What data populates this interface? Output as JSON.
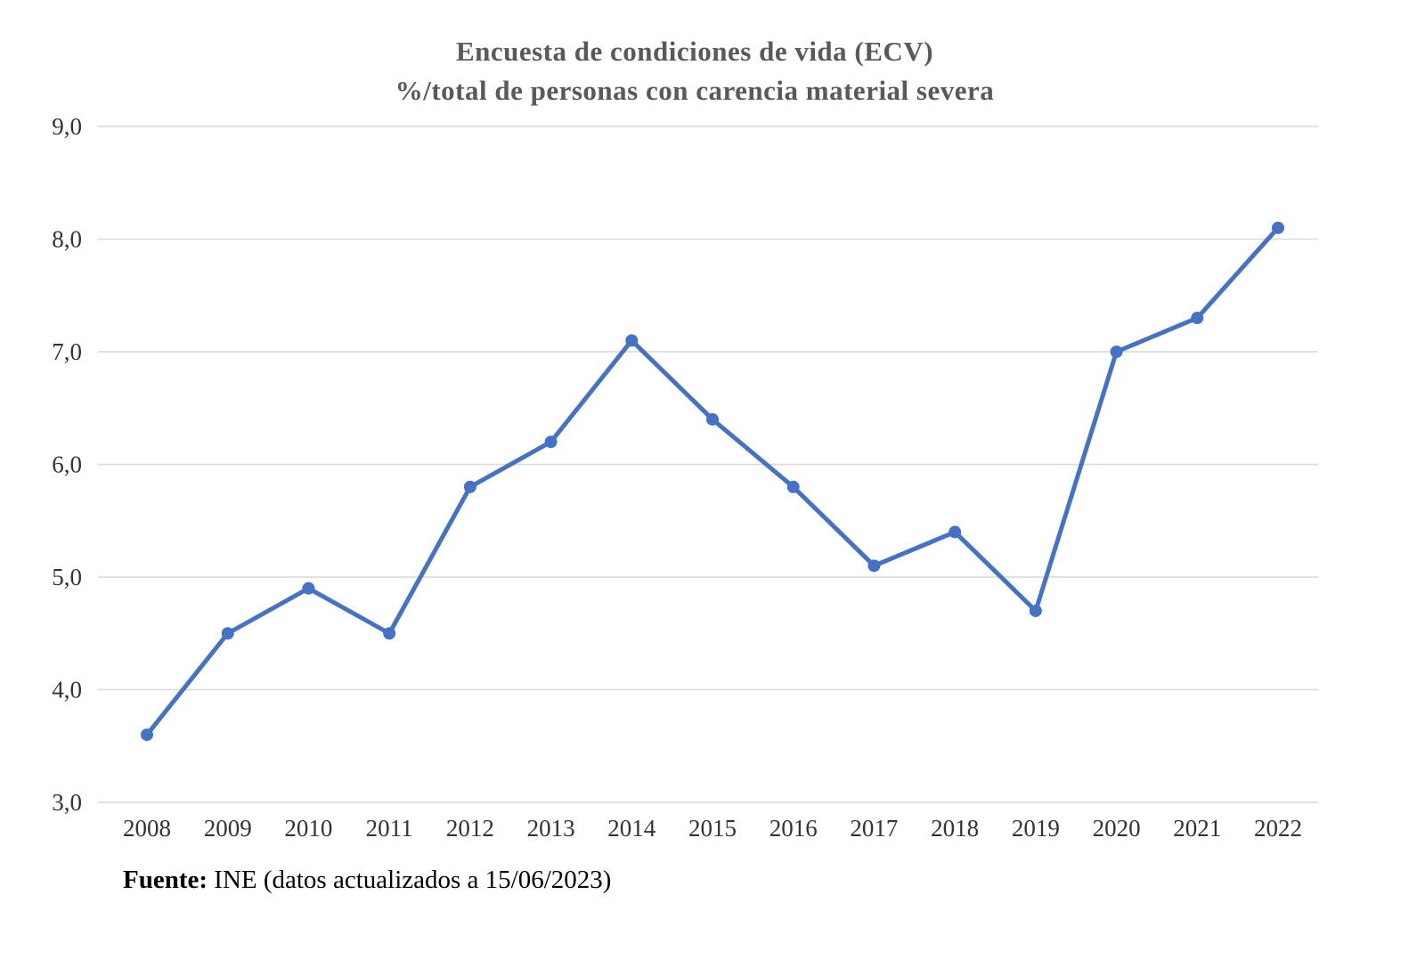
{
  "title": {
    "line1": "Encuesta de condiciones de vida (ECV)",
    "line2": "%/total de personas con carencia material severa"
  },
  "footer": {
    "label": "Fuente:",
    "text": " INE (datos actualizados a 15/06/2023)"
  },
  "colors": {
    "line": "#4472C4",
    "grid": "#D9D9D9",
    "tick_text": "#333333",
    "title_text": "#595959"
  },
  "chart_data": {
    "type": "line",
    "title": "Encuesta de condiciones de vida (ECV)",
    "subtitle": "%/total de personas con carencia material severa",
    "categories": [
      "2008",
      "2009",
      "2010",
      "2011",
      "2012",
      "2013",
      "2014",
      "2015",
      "2016",
      "2017",
      "2018",
      "2019",
      "2020",
      "2021",
      "2022"
    ],
    "series": [
      {
        "name": "% total de personas con carencia material severa",
        "values": [
          3.6,
          4.5,
          4.9,
          4.5,
          5.8,
          6.2,
          7.1,
          6.4,
          5.8,
          5.1,
          5.4,
          4.7,
          7.0,
          7.3,
          8.1
        ]
      }
    ],
    "ylim": [
      3.0,
      9.0
    ],
    "ytick_step": 1.0,
    "decimal_separator": ",",
    "grid": true,
    "legend_position": "none",
    "marker": "circle",
    "annotation": "Fuente: INE (datos actualizados a 15/06/2023)"
  }
}
